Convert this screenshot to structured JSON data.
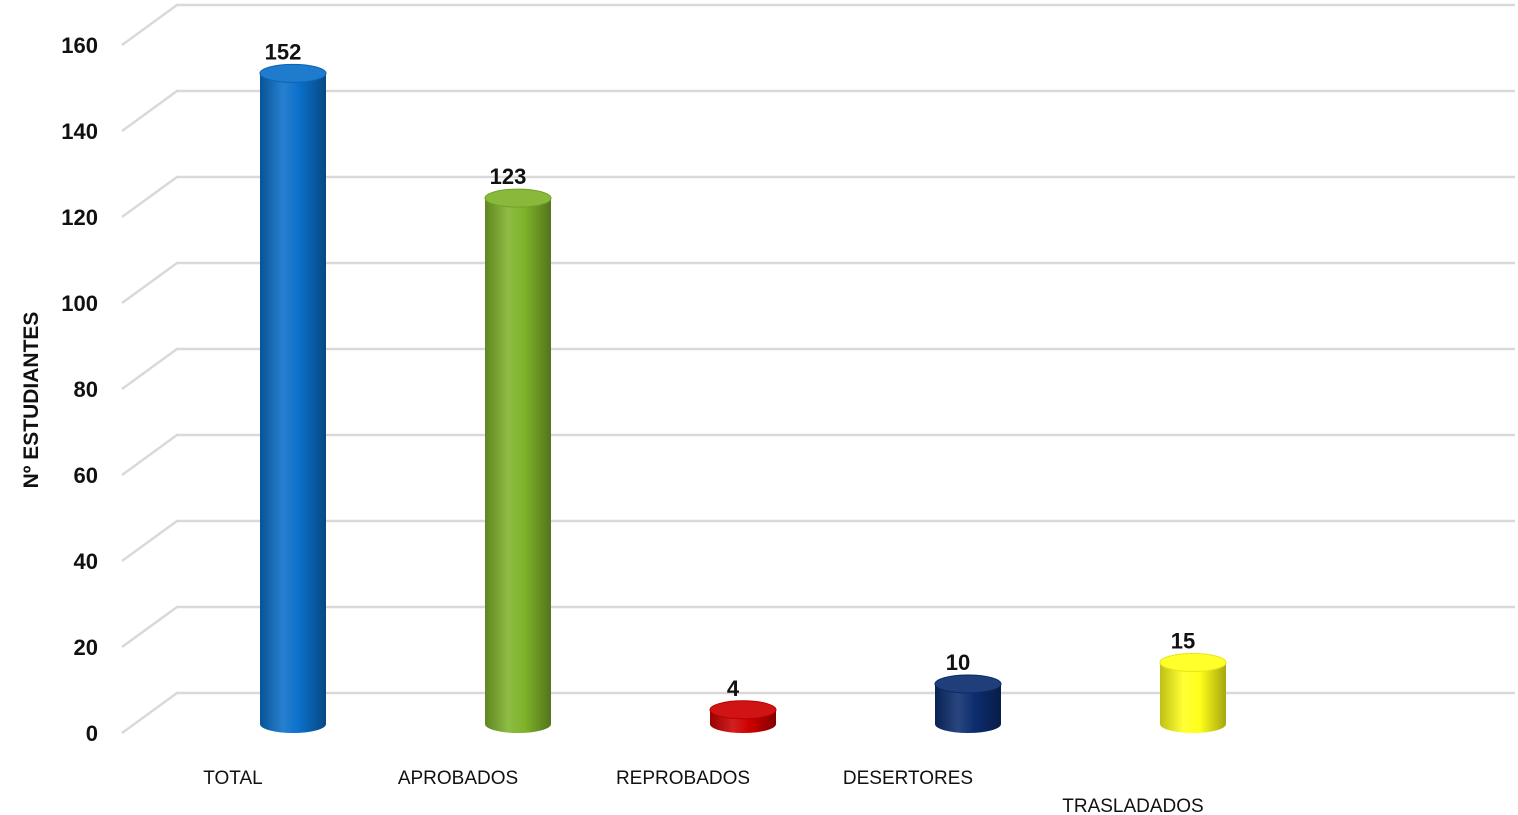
{
  "chart_data": {
    "type": "bar",
    "style": "3d-cylinder",
    "categories": [
      "TOTAL",
      "APROBADOS",
      "REPROBADOS",
      "DESERTORES",
      "TRASLADADOS"
    ],
    "values": [
      152,
      123,
      4,
      10,
      15
    ],
    "colors": [
      "#0a6fc9",
      "#7fb32a",
      "#cc0000",
      "#0c2d6e",
      "#ffff1a"
    ],
    "title": "",
    "xlabel": "",
    "ylabel": "Nº ESTUDIANTES",
    "ylim": [
      0,
      160
    ],
    "yticks": [
      0,
      20,
      40,
      60,
      80,
      100,
      120,
      140,
      160
    ],
    "grid": true,
    "legend": "none"
  }
}
